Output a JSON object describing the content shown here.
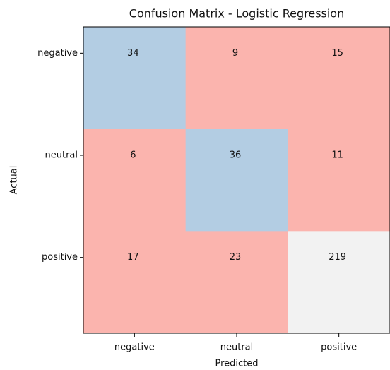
{
  "chart_data": {
    "type": "heatmap",
    "title": "Confusion Matrix - Logistic Regression",
    "x_label": "Predicted",
    "y_label": "Actual",
    "x_categories": [
      "negative",
      "neutral",
      "positive"
    ],
    "y_categories": [
      "negative",
      "neutral",
      "positive"
    ],
    "values": [
      [
        34,
        9,
        15
      ],
      [
        6,
        36,
        11
      ],
      [
        17,
        23,
        219
      ]
    ],
    "colormap": [
      "#fbb4ae",
      "#b3cde3",
      "#ccebc5",
      "#decbe4",
      "#fed9a6",
      "#ffffcc",
      "#e5d8bd",
      "#fddaec",
      "#f2f2f2"
    ]
  }
}
